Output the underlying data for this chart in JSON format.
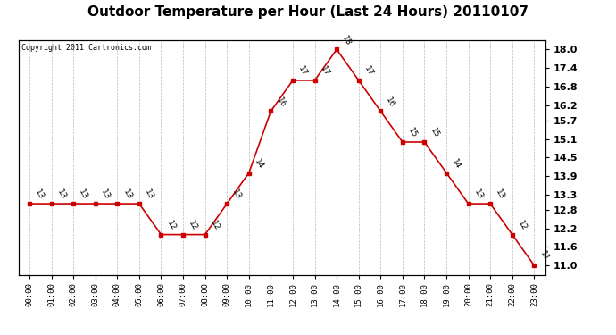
{
  "title": "Outdoor Temperature per Hour (Last 24 Hours) 20110107",
  "copyright_text": "Copyright 2011 Cartronics.com",
  "hours": [
    "00:00",
    "01:00",
    "02:00",
    "03:00",
    "04:00",
    "05:00",
    "06:00",
    "07:00",
    "08:00",
    "09:00",
    "10:00",
    "11:00",
    "12:00",
    "13:00",
    "14:00",
    "15:00",
    "16:00",
    "17:00",
    "18:00",
    "19:00",
    "20:00",
    "21:00",
    "22:00",
    "23:00"
  ],
  "temps": [
    13,
    13,
    13,
    13,
    13,
    13,
    12,
    12,
    12,
    13,
    14,
    16,
    17,
    17,
    18,
    17,
    16,
    15,
    15,
    14,
    13,
    13,
    12,
    11
  ],
  "line_color": "#cc0000",
  "marker": "s",
  "marker_size": 3,
  "ylim": [
    10.7,
    18.3
  ],
  "yticks_right": [
    11.0,
    11.6,
    12.2,
    12.8,
    13.3,
    13.9,
    14.5,
    15.1,
    15.7,
    16.2,
    16.8,
    17.4,
    18.0
  ],
  "grid_color": "#bbbbbb",
  "background_color": "#ffffff",
  "title_fontsize": 11,
  "annotation_fontsize": 6.5,
  "annotation_rotation": -60
}
